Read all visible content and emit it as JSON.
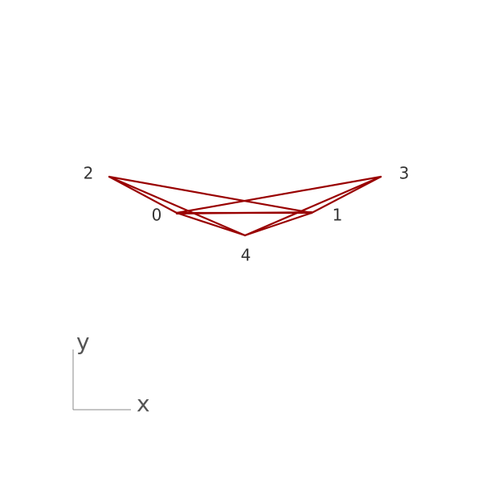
{
  "diagram": {
    "edge_color": "#990000",
    "nodes": [
      {
        "id": "0",
        "label": "0"
      },
      {
        "id": "1",
        "label": "1"
      },
      {
        "id": "2",
        "label": "2"
      },
      {
        "id": "3",
        "label": "3"
      },
      {
        "id": "4",
        "label": "4"
      }
    ],
    "edges": [
      [
        "2",
        "0"
      ],
      [
        "2",
        "4"
      ],
      [
        "0",
        "4"
      ],
      [
        "0",
        "1"
      ],
      [
        "0",
        "1"
      ],
      [
        "1",
        "4"
      ],
      [
        "1",
        "3"
      ],
      [
        "3",
        "4"
      ],
      [
        "0",
        "3"
      ],
      [
        "1",
        "2"
      ]
    ]
  },
  "axes": {
    "x_label": "x",
    "y_label": "y",
    "line_color": "#888888"
  }
}
